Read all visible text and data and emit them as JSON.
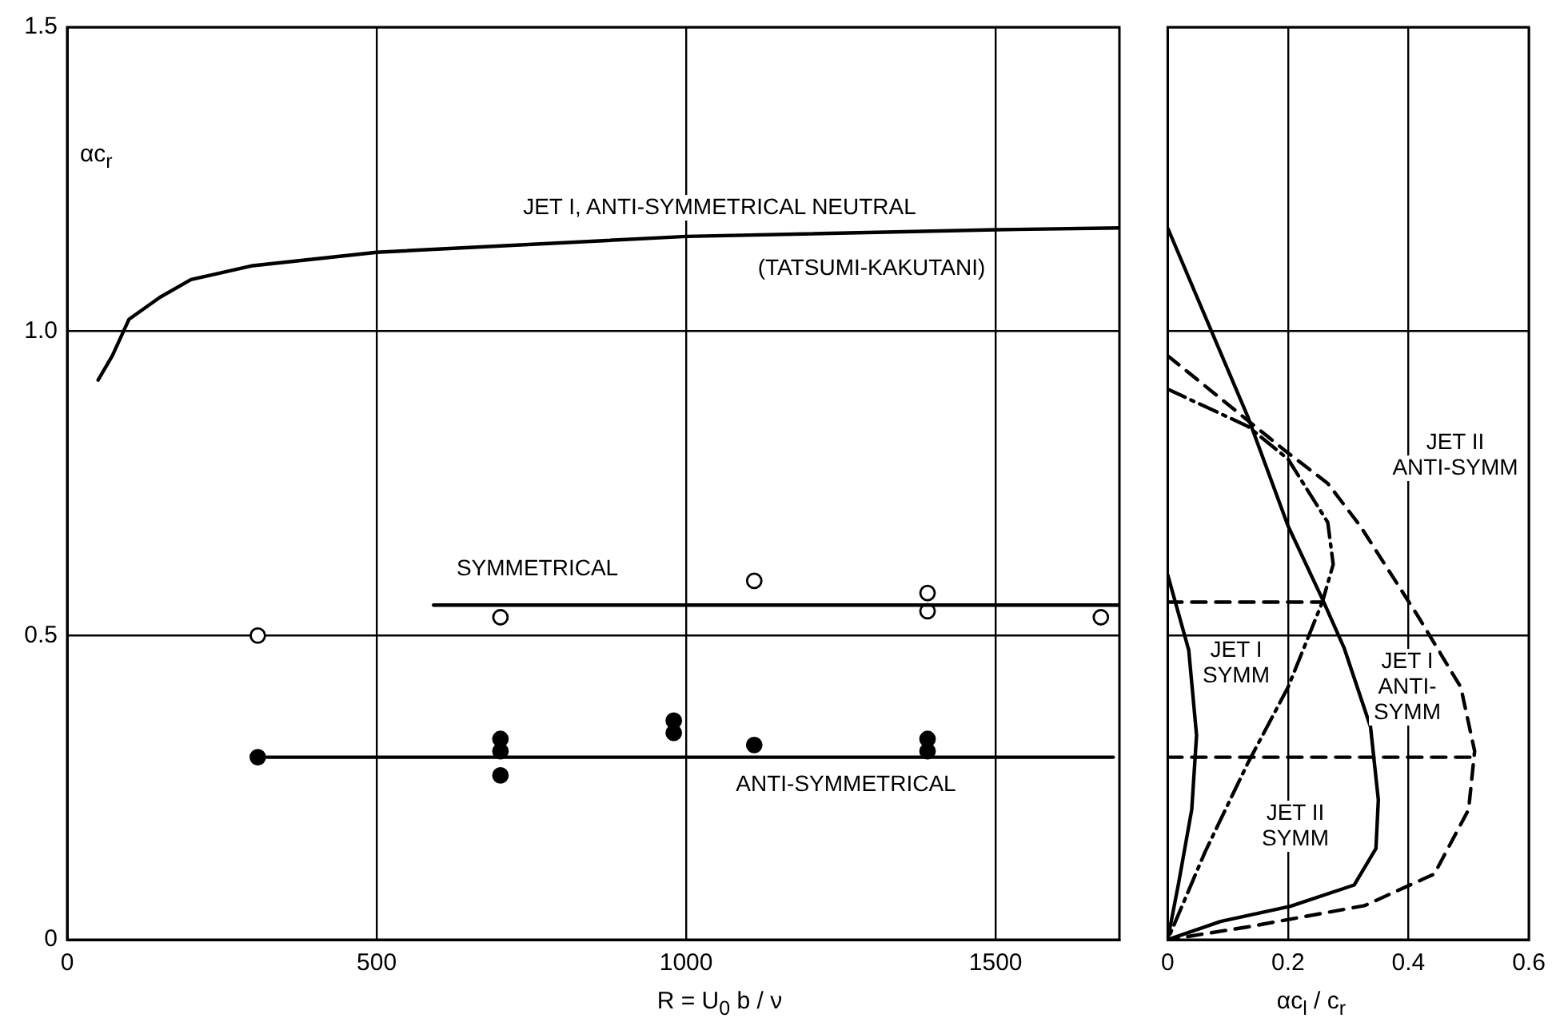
{
  "chart_data": [
    {
      "type": "line",
      "xlabel": "R = U$_{0}$ b / ν",
      "ylabel": "αc$_{r}$",
      "xlim": [
        0,
        1700
      ],
      "xticks": [
        0,
        500,
        1000,
        1500
      ],
      "ylim": [
        0,
        1.5
      ],
      "yticks": [
        0,
        {
          "value": 0.5,
          "label": "0.5"
        },
        {
          "value": 1,
          "label": "1.0"
        },
        {
          "value": 1.5,
          "label": "1.5"
        }
      ],
      "grid": true,
      "series": [
        {
          "type": "line",
          "color": "#000000",
          "marker": "none",
          "line_style": "solid",
          "x": [
            50,
            73,
            100,
            150,
            200,
            300,
            500,
            1000,
            1500,
            1700
          ],
          "values": [
            0.92,
            0.96,
            1.02,
            1.056,
            1.085,
            1.108,
            1.13,
            1.156,
            1.167,
            1.17
          ]
        },
        {
          "type": "line",
          "color": "#000000",
          "marker": "none",
          "line_style": "solid",
          "x": [
            592,
            1700
          ],
          "values": [
            0.55,
            0.55
          ]
        },
        {
          "type": "line",
          "color": "#000000",
          "marker": "none",
          "line_style": "solid",
          "x": [
            323,
            1690
          ],
          "values": [
            0.3,
            0.3
          ]
        },
        {
          "type": "scatter",
          "color": "#ffffff",
          "marker": "circle",
          "x": [
            308,
            700,
            1110,
            1390,
            1390,
            1670
          ],
          "values": [
            0.5,
            0.53,
            0.59,
            0.57,
            0.54,
            0.53
          ]
        },
        {
          "type": "scatter",
          "color": "#000000",
          "marker": "circle",
          "x": [
            308,
            700,
            700,
            700,
            980,
            980,
            1110,
            1390,
            1390
          ],
          "values": [
            0.3,
            0.33,
            0.31,
            0.27,
            0.36,
            0.34,
            0.32,
            0.33,
            0.31
          ]
        }
      ],
      "annotations": [
        "JET I, ANTI-SYMMETRICAL NEUTRAL",
        "(TATSUMI-KAKUTANI)",
        "SYMMETRICAL",
        "ANTI-SYMMETRICAL"
      ]
    },
    {
      "type": "line",
      "xlabel": "αc$_{l}$ / c$_{r}$",
      "xlim": [
        0,
        0.6
      ],
      "xticks": [
        0,
        0.2,
        0.4,
        0.6
      ],
      "ylim": [
        0,
        1.5
      ],
      "yticks": [
        0,
        0.5,
        1,
        1.5
      ],
      "tick_labels": "x",
      "grid": true,
      "series": [
        {
          "type": "line",
          "color": "#000000",
          "marker": "none",
          "line_style": "solid",
          "x": [
            0,
            0.133,
            0.2,
            0.257,
            0.293,
            0.337,
            0.35,
            0.346,
            0.31,
            0.204,
            0.088,
            0
          ],
          "values": [
            1.17,
            0.86,
            0.68,
            0.56,
            0.48,
            0.35,
            0.23,
            0.15,
            0.09,
            0.055,
            0.03,
            0
          ]
        },
        {
          "type": "line",
          "color": "#000000",
          "marker": "none",
          "line_style": "dashed",
          "x": [
            0,
            0.2,
            0.266,
            0.32,
            0.417,
            0.487,
            0.51,
            0.5,
            0.443,
            0.327,
            0.133,
            0
          ],
          "values": [
            0.96,
            0.8,
            0.75,
            0.68,
            0.53,
            0.415,
            0.31,
            0.214,
            0.108,
            0.056,
            0.021,
            0
          ]
        },
        {
          "type": "line",
          "color": "#000000",
          "marker": "none",
          "line_style": "dashdot",
          "x": [
            0,
            0.133,
            0.2,
            0.266,
            0.275,
            0.257,
            0.2,
            0.133,
            0.062,
            0
          ],
          "values": [
            0.905,
            0.844,
            0.79,
            0.686,
            0.617,
            0.555,
            0.415,
            0.29,
            0.144,
            0
          ]
        },
        {
          "type": "line",
          "color": "#000000",
          "marker": "none",
          "line_style": "solid",
          "x": [
            0,
            0.035,
            0.048,
            0.04,
            0.018,
            0
          ],
          "values": [
            0.6,
            0.476,
            0.336,
            0.214,
            0.092,
            0
          ]
        },
        {
          "type": "line",
          "color": "#000000",
          "marker": "none",
          "line_style": "dashed",
          "x": [
            0,
            0.257
          ],
          "values": [
            0.555,
            0.555
          ]
        },
        {
          "type": "line",
          "color": "#000000",
          "marker": "none",
          "line_style": "dashed",
          "x": [
            0,
            0.51
          ],
          "values": [
            0.3,
            0.3
          ]
        }
      ],
      "annotations": [
        "JET II\nANTI-SYMM",
        "JET I\nSYMM",
        "JET I\nANTI-\nSYMM",
        "JET II\nSYMM"
      ]
    }
  ]
}
